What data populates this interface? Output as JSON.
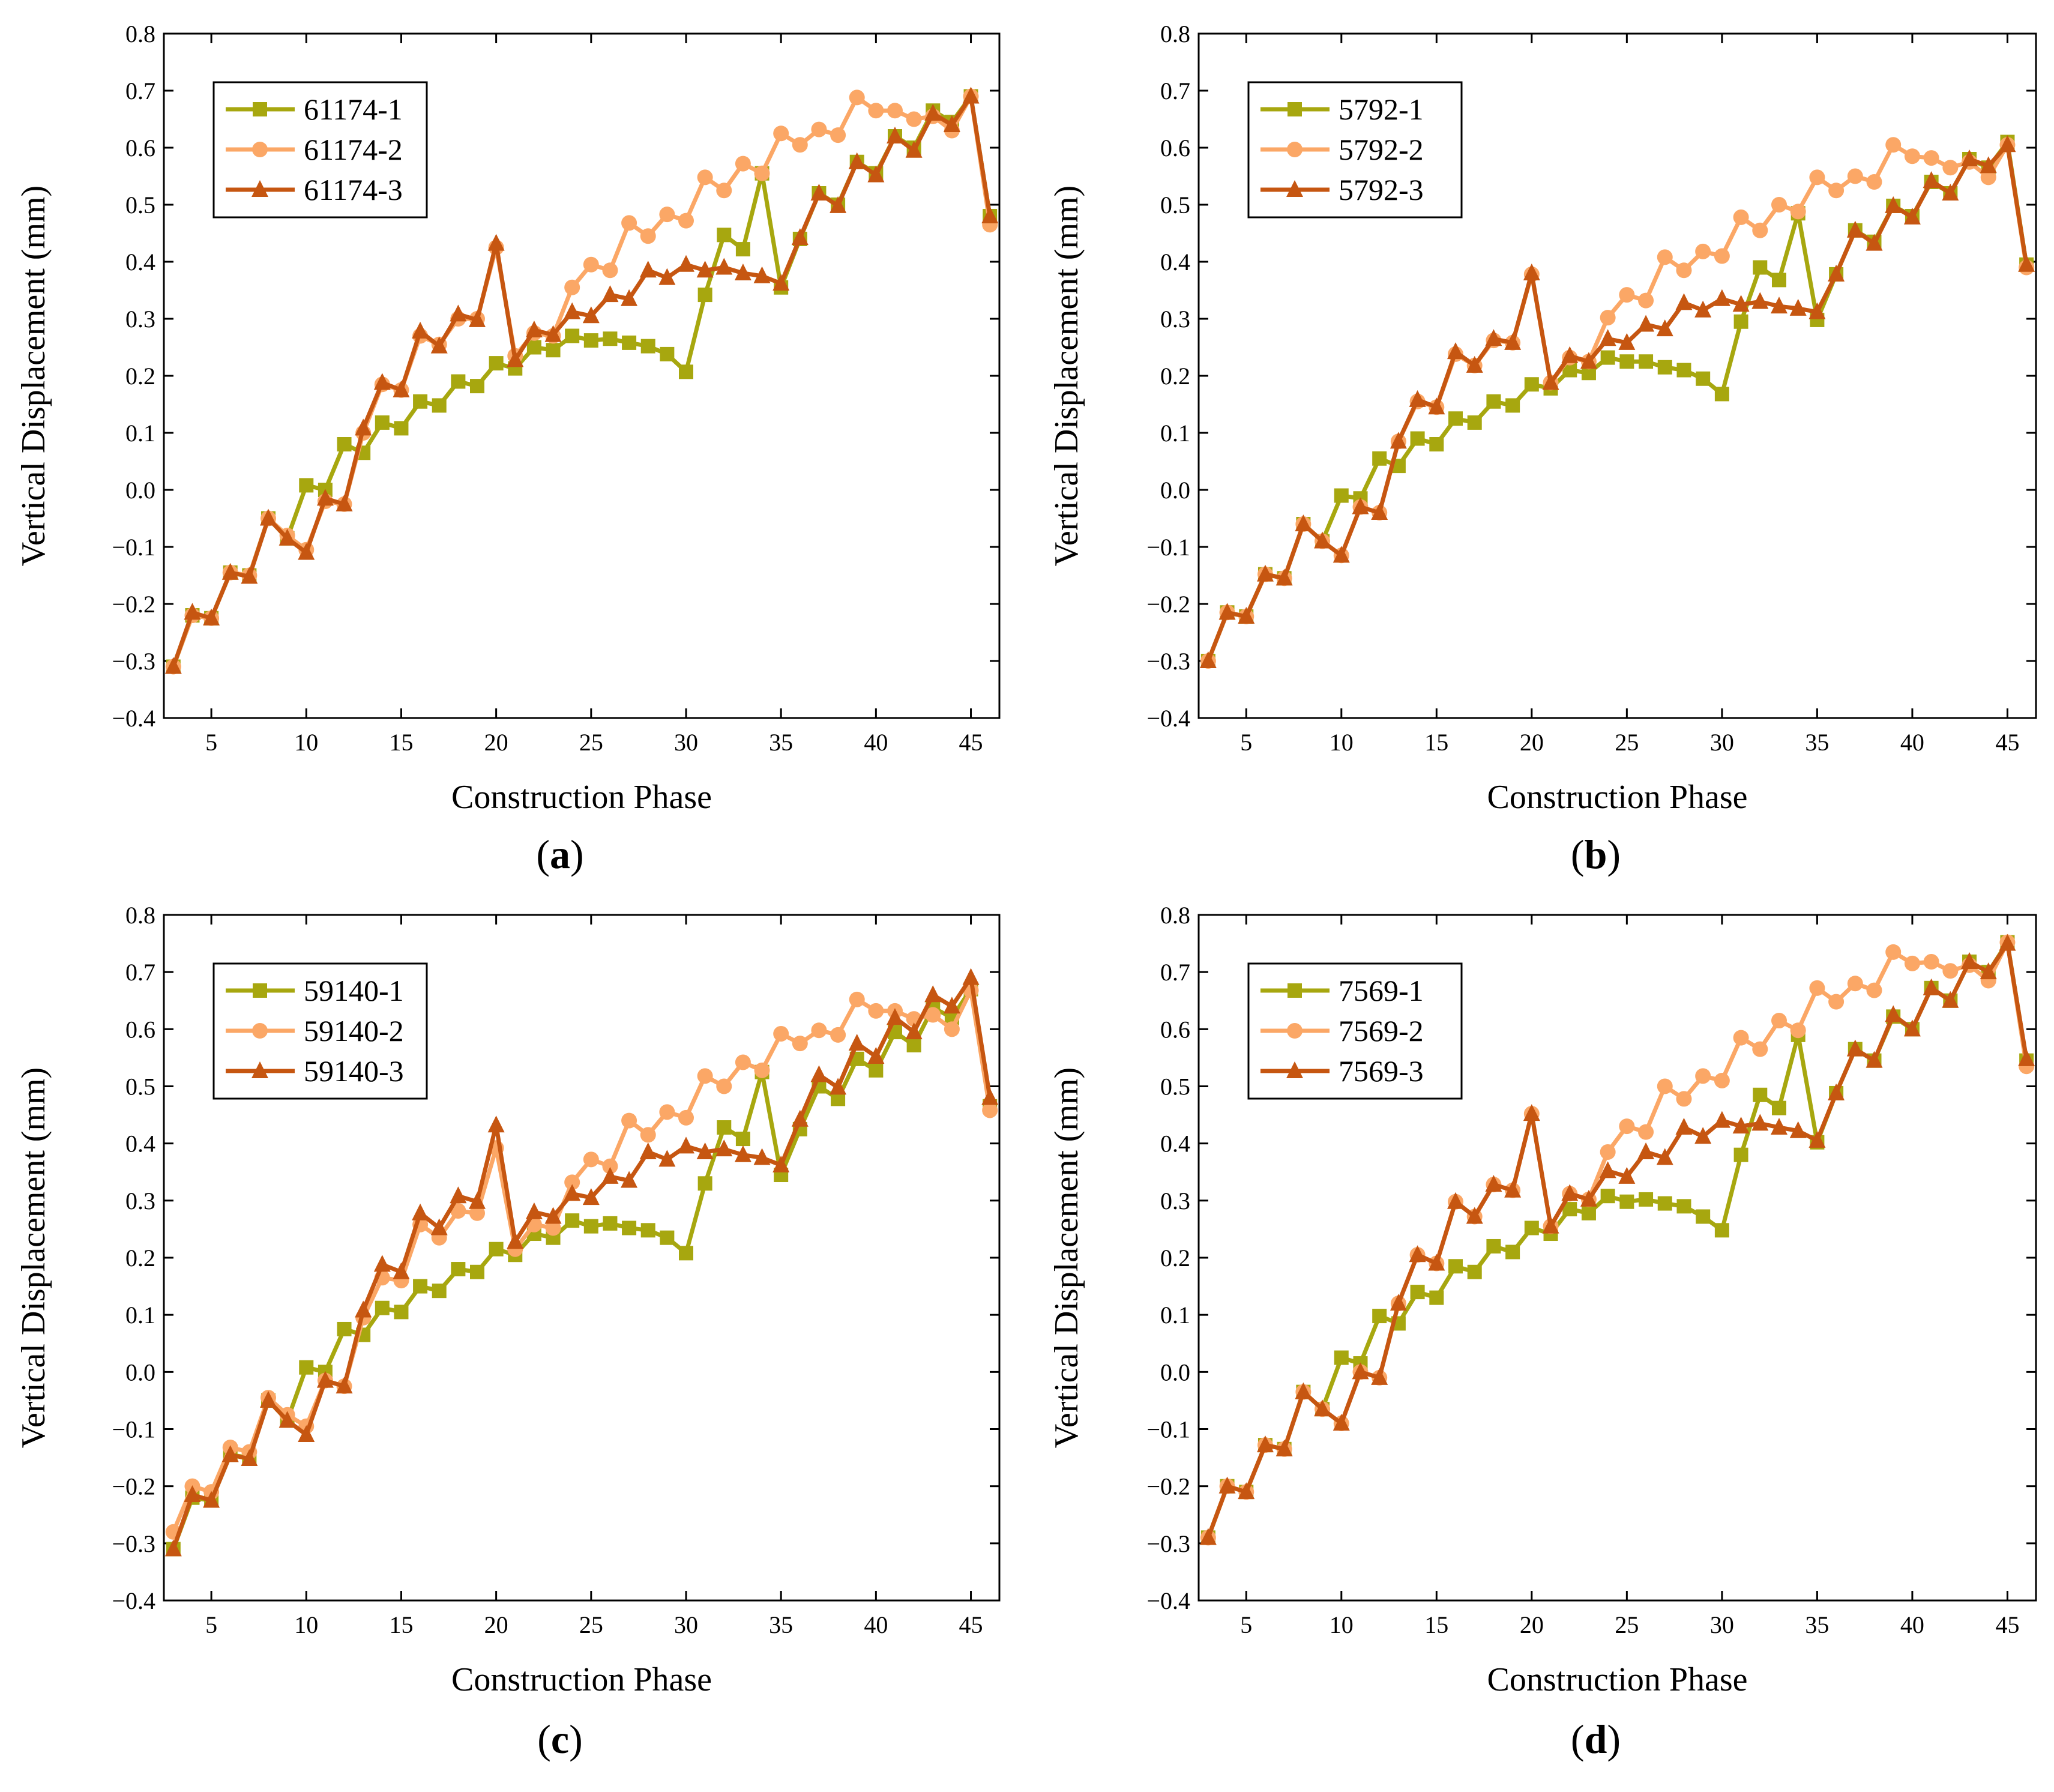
{
  "colors": {
    "s1": "#a7a70f",
    "s2": "#fba766",
    "s3": "#c65611"
  },
  "chart_data": [
    {
      "id": "a",
      "type": "line",
      "panel_label": "a",
      "xlabel": "Construction  Phase",
      "ylabel": "Vertical  Displacement  (mm)",
      "xlim": [
        2.5,
        46.5
      ],
      "ylim": [
        -0.4,
        0.8
      ],
      "xticks": [
        5,
        10,
        15,
        20,
        25,
        30,
        35,
        40,
        45
      ],
      "yticks": [
        -0.4,
        -0.3,
        -0.2,
        -0.1,
        0.0,
        0.1,
        0.2,
        0.3,
        0.4,
        0.5,
        0.6,
        0.7,
        0.8
      ],
      "ytick_labels": [
        "−0.4",
        "−0.3",
        "−0.2",
        "−0.1",
        "0.0",
        "0.1",
        "0.2",
        "0.3",
        "0.4",
        "0.5",
        "0.6",
        "0.7",
        "0.8"
      ],
      "legend_position": "top-left",
      "x": [
        3,
        4,
        5,
        6,
        7,
        8,
        9,
        10,
        11,
        12,
        13,
        14,
        15,
        16,
        17,
        18,
        19,
        20,
        21,
        22,
        23,
        24,
        25,
        26,
        27,
        28,
        29,
        30,
        31,
        32,
        33,
        34,
        35,
        36,
        37,
        38,
        39,
        40,
        41,
        42,
        43,
        44,
        45,
        46
      ],
      "series": [
        {
          "name": "61174-1",
          "marker": "square",
          "values": [
            -0.31,
            -0.22,
            -0.225,
            -0.145,
            -0.15,
            -0.05,
            -0.085,
            0.008,
            0.0,
            0.08,
            0.065,
            0.118,
            0.108,
            0.155,
            0.148,
            0.19,
            0.182,
            0.222,
            0.213,
            0.25,
            0.245,
            0.27,
            0.262,
            0.265,
            0.258,
            0.252,
            0.238,
            0.207,
            0.342,
            0.447,
            0.422,
            0.555,
            0.355,
            0.44,
            0.52,
            0.5,
            0.575,
            0.555,
            0.62,
            0.6,
            0.665,
            0.645,
            0.69,
            0.48
          ]
        },
        {
          "name": "61174-2",
          "marker": "circle",
          "values": [
            -0.31,
            -0.22,
            -0.225,
            -0.145,
            -0.15,
            -0.05,
            -0.08,
            -0.105,
            -0.02,
            -0.025,
            0.1,
            0.185,
            0.175,
            0.27,
            0.255,
            0.3,
            0.3,
            0.425,
            0.235,
            0.275,
            0.27,
            0.355,
            0.395,
            0.385,
            0.468,
            0.445,
            0.483,
            0.472,
            0.548,
            0.525,
            0.572,
            0.555,
            0.625,
            0.605,
            0.632,
            0.622,
            0.688,
            0.665,
            0.665,
            0.65,
            0.655,
            0.63,
            0.69,
            0.465
          ]
        },
        {
          "name": "61174-3",
          "marker": "triangle",
          "values": [
            -0.31,
            -0.215,
            -0.225,
            -0.145,
            -0.152,
            -0.05,
            -0.085,
            -0.11,
            -0.015,
            -0.025,
            0.108,
            0.188,
            0.175,
            0.278,
            0.252,
            0.308,
            0.298,
            0.432,
            0.228,
            0.28,
            0.272,
            0.312,
            0.305,
            0.342,
            0.335,
            0.385,
            0.372,
            0.395,
            0.385,
            0.39,
            0.38,
            0.375,
            0.362,
            0.442,
            0.52,
            0.498,
            0.575,
            0.552,
            0.62,
            0.595,
            0.66,
            0.64,
            0.69,
            0.48
          ]
        }
      ]
    },
    {
      "id": "b",
      "type": "line",
      "panel_label": "b",
      "xlabel": "Construction  Phase",
      "ylabel": "Vertical  Displacement  (mm)",
      "xlim": [
        2.5,
        46.5
      ],
      "ylim": [
        -0.4,
        0.8
      ],
      "xticks": [
        5,
        10,
        15,
        20,
        25,
        30,
        35,
        40,
        45
      ],
      "yticks": [
        -0.4,
        -0.3,
        -0.2,
        -0.1,
        0.0,
        0.1,
        0.2,
        0.3,
        0.4,
        0.5,
        0.6,
        0.7,
        0.8
      ],
      "ytick_labels": [
        "−0.4",
        "−0.3",
        "−0.2",
        "−0.1",
        "0.0",
        "0.1",
        "0.2",
        "0.3",
        "0.4",
        "0.5",
        "0.6",
        "0.7",
        "0.8"
      ],
      "legend_position": "top-left",
      "x": [
        3,
        4,
        5,
        6,
        7,
        8,
        9,
        10,
        11,
        12,
        13,
        14,
        15,
        16,
        17,
        18,
        19,
        20,
        21,
        22,
        23,
        24,
        25,
        26,
        27,
        28,
        29,
        30,
        31,
        32,
        33,
        34,
        35,
        36,
        37,
        38,
        39,
        40,
        41,
        42,
        43,
        44,
        45,
        46
      ],
      "series": [
        {
          "name": "5792-1",
          "marker": "square",
          "values": [
            -0.3,
            -0.215,
            -0.222,
            -0.148,
            -0.155,
            -0.06,
            -0.09,
            -0.01,
            -0.015,
            0.055,
            0.042,
            0.09,
            0.08,
            0.125,
            0.118,
            0.155,
            0.148,
            0.185,
            0.178,
            0.21,
            0.205,
            0.232,
            0.225,
            0.225,
            0.215,
            0.21,
            0.195,
            0.168,
            0.295,
            0.39,
            0.368,
            0.485,
            0.298,
            0.378,
            0.455,
            0.435,
            0.498,
            0.48,
            0.54,
            0.52,
            0.58,
            0.565,
            0.61,
            0.395
          ]
        },
        {
          "name": "5792-2",
          "marker": "circle",
          "values": [
            -0.3,
            -0.215,
            -0.222,
            -0.148,
            -0.155,
            -0.06,
            -0.09,
            -0.115,
            -0.03,
            -0.04,
            0.085,
            0.155,
            0.145,
            0.238,
            0.218,
            0.262,
            0.258,
            0.378,
            0.188,
            0.232,
            0.225,
            0.302,
            0.342,
            0.332,
            0.408,
            0.385,
            0.418,
            0.41,
            0.478,
            0.455,
            0.5,
            0.488,
            0.548,
            0.525,
            0.55,
            0.54,
            0.605,
            0.585,
            0.582,
            0.565,
            0.575,
            0.548,
            0.605,
            0.39
          ]
        },
        {
          "name": "5792-3",
          "marker": "triangle",
          "values": [
            -0.3,
            -0.215,
            -0.222,
            -0.148,
            -0.155,
            -0.06,
            -0.09,
            -0.115,
            -0.03,
            -0.04,
            0.085,
            0.158,
            0.145,
            0.242,
            0.218,
            0.265,
            0.258,
            0.38,
            0.188,
            0.235,
            0.225,
            0.265,
            0.258,
            0.29,
            0.282,
            0.328,
            0.315,
            0.335,
            0.325,
            0.33,
            0.322,
            0.318,
            0.312,
            0.378,
            0.455,
            0.432,
            0.498,
            0.478,
            0.542,
            0.52,
            0.58,
            0.568,
            0.605,
            0.395
          ]
        }
      ]
    },
    {
      "id": "c",
      "type": "line",
      "panel_label": "c",
      "xlabel": "Construction  Phase",
      "ylabel": "Vertical  Displacement  (mm)",
      "xlim": [
        2.5,
        46.5
      ],
      "ylim": [
        -0.4,
        0.8
      ],
      "xticks": [
        5,
        10,
        15,
        20,
        25,
        30,
        35,
        40,
        45
      ],
      "yticks": [
        -0.4,
        -0.3,
        -0.2,
        -0.1,
        0.0,
        0.1,
        0.2,
        0.3,
        0.4,
        0.5,
        0.6,
        0.7,
        0.8
      ],
      "ytick_labels": [
        "−0.4",
        "−0.3",
        "−0.2",
        "−0.1",
        "0.0",
        "0.1",
        "0.2",
        "0.3",
        "0.4",
        "0.5",
        "0.6",
        "0.7",
        "0.8"
      ],
      "legend_position": "top-left",
      "x": [
        3,
        4,
        5,
        6,
        7,
        8,
        9,
        10,
        11,
        12,
        13,
        14,
        15,
        16,
        17,
        18,
        19,
        20,
        21,
        22,
        23,
        24,
        25,
        26,
        27,
        28,
        29,
        30,
        31,
        32,
        33,
        34,
        35,
        36,
        37,
        38,
        39,
        40,
        41,
        42,
        43,
        44,
        45,
        46
      ],
      "series": [
        {
          "name": "59140-1",
          "marker": "square",
          "values": [
            -0.31,
            -0.22,
            -0.225,
            -0.145,
            -0.15,
            -0.05,
            -0.085,
            0.008,
            0.0,
            0.075,
            0.065,
            0.112,
            0.105,
            0.15,
            0.142,
            0.18,
            0.175,
            0.215,
            0.205,
            0.242,
            0.235,
            0.265,
            0.255,
            0.26,
            0.252,
            0.248,
            0.235,
            0.208,
            0.33,
            0.428,
            0.408,
            0.525,
            0.345,
            0.425,
            0.5,
            0.478,
            0.548,
            0.528,
            0.595,
            0.572,
            0.638,
            0.62,
            0.67,
            0.465
          ]
        },
        {
          "name": "59140-2",
          "marker": "circle",
          "values": [
            -0.28,
            -0.2,
            -0.21,
            -0.132,
            -0.14,
            -0.045,
            -0.075,
            -0.095,
            -0.015,
            -0.025,
            0.095,
            0.165,
            0.16,
            0.258,
            0.235,
            0.282,
            0.278,
            0.392,
            0.215,
            0.258,
            0.252,
            0.332,
            0.372,
            0.36,
            0.44,
            0.415,
            0.455,
            0.445,
            0.518,
            0.5,
            0.542,
            0.528,
            0.592,
            0.575,
            0.598,
            0.59,
            0.652,
            0.632,
            0.632,
            0.618,
            0.625,
            0.6,
            0.668,
            0.458
          ]
        },
        {
          "name": "59140-3",
          "marker": "triangle",
          "values": [
            -0.31,
            -0.215,
            -0.225,
            -0.145,
            -0.152,
            -0.05,
            -0.085,
            -0.11,
            -0.015,
            -0.025,
            0.108,
            0.188,
            0.175,
            0.278,
            0.252,
            0.308,
            0.298,
            0.432,
            0.228,
            0.28,
            0.272,
            0.312,
            0.305,
            0.342,
            0.335,
            0.385,
            0.372,
            0.395,
            0.385,
            0.39,
            0.38,
            0.375,
            0.362,
            0.442,
            0.52,
            0.498,
            0.575,
            0.552,
            0.62,
            0.595,
            0.66,
            0.64,
            0.69,
            0.48
          ]
        }
      ]
    },
    {
      "id": "d",
      "type": "line",
      "panel_label": "d",
      "xlabel": "Construction  Phase",
      "ylabel": "Vertical  Displacement  (mm)",
      "xlim": [
        2.5,
        46.5
      ],
      "ylim": [
        -0.4,
        0.8
      ],
      "xticks": [
        5,
        10,
        15,
        20,
        25,
        30,
        35,
        40,
        45
      ],
      "yticks": [
        -0.4,
        -0.3,
        -0.2,
        -0.1,
        0.0,
        0.1,
        0.2,
        0.3,
        0.4,
        0.5,
        0.6,
        0.7,
        0.8
      ],
      "ytick_labels": [
        "−0.4",
        "−0.3",
        "−0.2",
        "−0.1",
        "0.0",
        "0.1",
        "0.2",
        "0.3",
        "0.4",
        "0.5",
        "0.6",
        "0.7",
        "0.8"
      ],
      "legend_position": "top-left",
      "x": [
        3,
        4,
        5,
        6,
        7,
        8,
        9,
        10,
        11,
        12,
        13,
        14,
        15,
        16,
        17,
        18,
        19,
        20,
        21,
        22,
        23,
        24,
        25,
        26,
        27,
        28,
        29,
        30,
        31,
        32,
        33,
        34,
        35,
        36,
        37,
        38,
        39,
        40,
        41,
        42,
        43,
        44,
        45,
        46
      ],
      "series": [
        {
          "name": "7569-1",
          "marker": "square",
          "values": [
            -0.29,
            -0.2,
            -0.21,
            -0.128,
            -0.135,
            -0.035,
            -0.065,
            0.025,
            0.015,
            0.098,
            0.085,
            0.14,
            0.13,
            0.185,
            0.175,
            0.22,
            0.21,
            0.252,
            0.242,
            0.285,
            0.278,
            0.308,
            0.298,
            0.302,
            0.295,
            0.29,
            0.272,
            0.248,
            0.38,
            0.485,
            0.462,
            0.59,
            0.402,
            0.488,
            0.565,
            0.545,
            0.622,
            0.6,
            0.672,
            0.65,
            0.718,
            0.7,
            0.752,
            0.545
          ]
        },
        {
          "name": "7569-2",
          "marker": "circle",
          "values": [
            -0.29,
            -0.2,
            -0.21,
            -0.128,
            -0.135,
            -0.035,
            -0.065,
            -0.09,
            0.0,
            -0.01,
            0.12,
            0.205,
            0.19,
            0.298,
            0.272,
            0.328,
            0.318,
            0.452,
            0.255,
            0.312,
            0.302,
            0.385,
            0.43,
            0.42,
            0.5,
            0.478,
            0.518,
            0.51,
            0.585,
            0.565,
            0.615,
            0.598,
            0.672,
            0.648,
            0.68,
            0.668,
            0.735,
            0.715,
            0.718,
            0.702,
            0.712,
            0.685,
            0.752,
            0.535
          ]
        },
        {
          "name": "7569-3",
          "marker": "triangle",
          "values": [
            -0.29,
            -0.2,
            -0.21,
            -0.128,
            -0.135,
            -0.035,
            -0.065,
            -0.09,
            0.0,
            -0.01,
            0.12,
            0.205,
            0.19,
            0.298,
            0.272,
            0.328,
            0.318,
            0.452,
            0.255,
            0.312,
            0.302,
            0.352,
            0.342,
            0.385,
            0.375,
            0.428,
            0.412,
            0.44,
            0.43,
            0.435,
            0.428,
            0.422,
            0.405,
            0.488,
            0.565,
            0.545,
            0.625,
            0.6,
            0.672,
            0.65,
            0.718,
            0.7,
            0.75,
            0.548
          ]
        }
      ]
    }
  ]
}
